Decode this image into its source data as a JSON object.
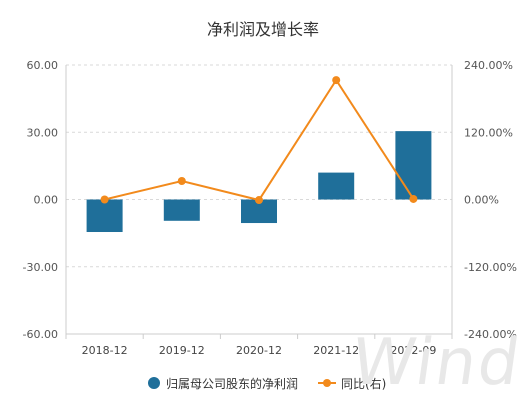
{
  "chart_data": {
    "type": "bar",
    "title": "净利润及增长率",
    "categories": [
      "2018-12",
      "2019-12",
      "2020-12",
      "2021-12",
      "2022-09"
    ],
    "series": [
      {
        "name": "归属母公司股东的净利润",
        "type": "bar",
        "axis": "left",
        "values": [
          -14.5,
          -9.5,
          -10.5,
          12.0,
          30.5
        ]
      },
      {
        "name": "同比(右)",
        "type": "line",
        "axis": "right",
        "values": [
          0.0,
          33.0,
          -1.0,
          213.0,
          1.0
        ]
      }
    ],
    "y_left": {
      "ylim": [
        -60,
        60
      ],
      "ticks": [
        "60.00",
        "30.00",
        "0.00",
        "-30.00",
        "-60.00"
      ]
    },
    "y_right": {
      "ylim": [
        -240,
        240
      ],
      "ticks": [
        "240.00%",
        "120.00%",
        "0.00%",
        "-120.00%",
        "-240.00%"
      ]
    },
    "grid": "horizontal-dashed",
    "legend_position": "bottom",
    "colors": {
      "bar": "#1f6f9a",
      "line": "#f28a1c"
    }
  },
  "watermark": "Wind"
}
